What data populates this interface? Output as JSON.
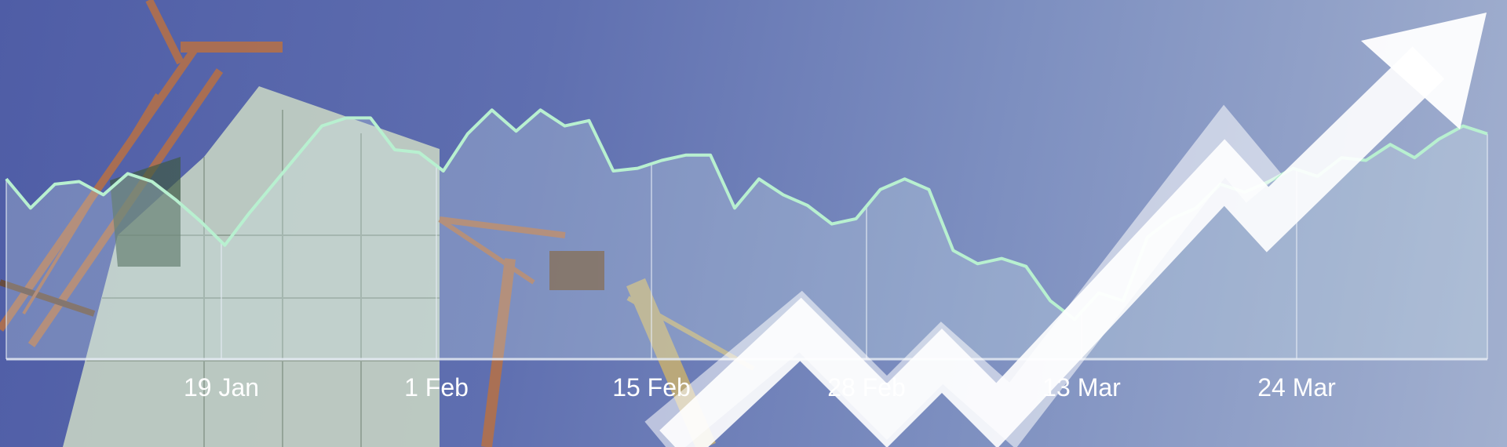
{
  "colors": {
    "sky_start": "#4f5da6",
    "sky_end": "#a2b0cf",
    "line": "#b8f0d0",
    "area_fill": "#cfe6e8",
    "grid": "#e6ecf5",
    "arrow": "#ffffff",
    "crane": "#b3704a",
    "building": "#c5d3c3"
  },
  "icons": {
    "background_photo": "construction-cranes-photo",
    "trend_arrow": "rising-zigzag-arrow"
  },
  "chart_data": {
    "type": "area",
    "title": "",
    "xlabel": "",
    "ylabel": "",
    "x_ticks": [
      "19 Jan",
      "1 Feb",
      "15 Feb",
      "28 Feb",
      "13 Mar",
      "24 Mar"
    ],
    "grid": true,
    "ylim": [
      0,
      100
    ],
    "series": [
      {
        "values": [
          68,
          57,
          66,
          67,
          62,
          70,
          67,
          60,
          52,
          43,
          55,
          66,
          77,
          88,
          91,
          91,
          79,
          78,
          71,
          85,
          94,
          86,
          94,
          88,
          90,
          71,
          72,
          75,
          77,
          77,
          57,
          68,
          62,
          58,
          51,
          53,
          64,
          68,
          64,
          41,
          36,
          38,
          35,
          22,
          15,
          25,
          22,
          46,
          53,
          57,
          66,
          63,
          67,
          72,
          69,
          76,
          75,
          81,
          76,
          83,
          88,
          85
        ]
      }
    ]
  }
}
